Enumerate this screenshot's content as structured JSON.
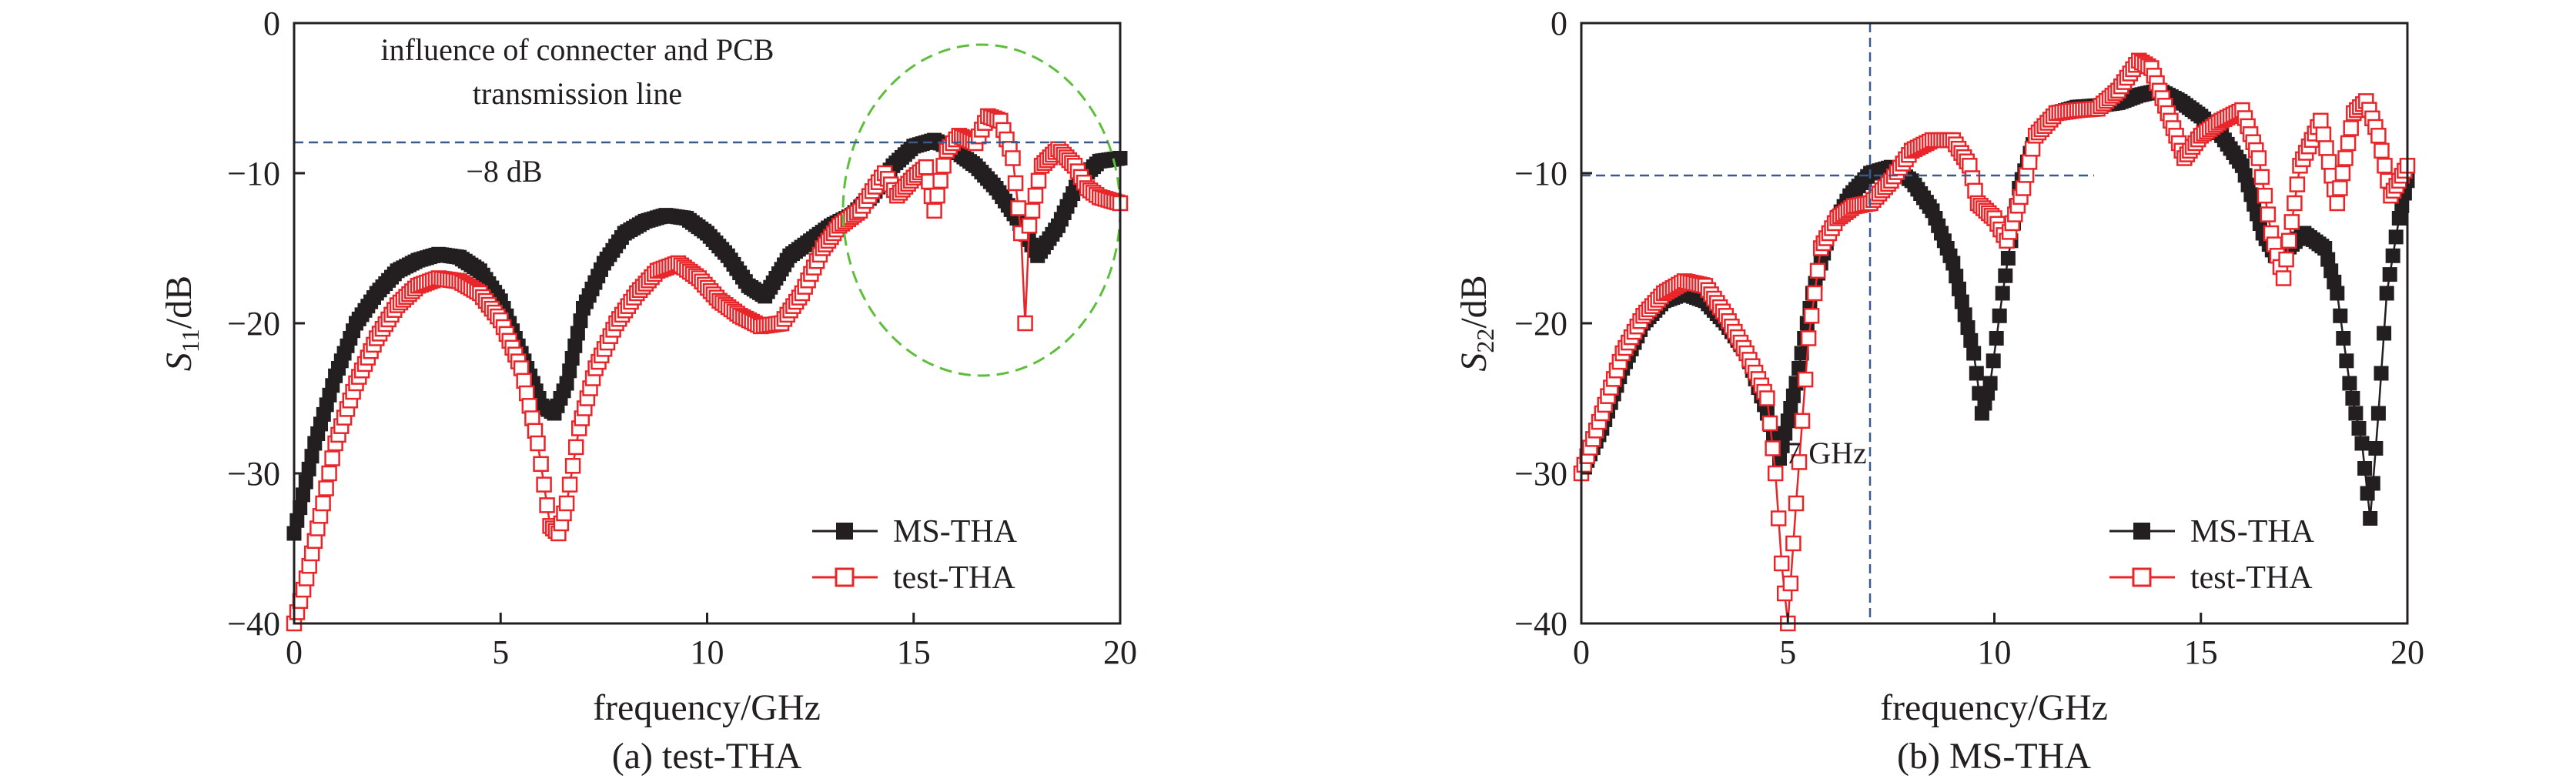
{
  "colors": {
    "ms": "#231f20",
    "test": "#e8262a",
    "ellipse": "#5cbf3a",
    "ref": "#3a5a8c",
    "axis": "#231f20"
  },
  "chart_data": [
    {
      "type": "line",
      "caption": "(a) test-THA",
      "xlabel": "frequency/GHz",
      "ylabel": {
        "main": "S",
        "sub": "11",
        "unit": "/dB"
      },
      "xlim": [
        0,
        20
      ],
      "ylim": [
        -40,
        0
      ],
      "xticks": [
        0,
        5,
        10,
        15,
        20
      ],
      "yticks": [
        0,
        -10,
        -20,
        -30,
        -40
      ],
      "xtick_labels": [
        "0",
        "5",
        "10",
        "15",
        "20"
      ],
      "ytick_labels": [
        "0",
        "−10",
        "−20",
        "−30",
        "−40"
      ],
      "legend": {
        "position": "bottom-right",
        "items": [
          "MS-THA",
          "test-THA"
        ]
      },
      "annotations": {
        "title_line1": "influence of connecter and PCB",
        "title_line2": "transmission line",
        "ref_label": "−8 dB",
        "ref_y": -8
      },
      "series": [
        {
          "name": "MS-THA",
          "marker": "filled-square",
          "color": "#231f20",
          "x": [
            0,
            0.5,
            1,
            1.5,
            2,
            2.5,
            3,
            3.5,
            4,
            4.5,
            5,
            5.5,
            6,
            6.3,
            6.6,
            7,
            7.5,
            8,
            8.5,
            9,
            9.5,
            10,
            10.5,
            11,
            11.4,
            12,
            12.5,
            13,
            13.5,
            14,
            14.5,
            15,
            15.5,
            16,
            16.5,
            17,
            17.5,
            18,
            18.5,
            19,
            19.5,
            20
          ],
          "y": [
            -34,
            -28,
            -23.5,
            -20,
            -18,
            -16.5,
            -15.8,
            -15.4,
            -15.6,
            -16.5,
            -18.5,
            -22,
            -25.5,
            -26,
            -24,
            -19,
            -16,
            -14,
            -13.2,
            -12.8,
            -13,
            -14,
            -15.5,
            -17.5,
            -18.2,
            -15.5,
            -14.5,
            -13.5,
            -12.8,
            -11.5,
            -9.5,
            -8.2,
            -7.8,
            -8.5,
            -9.5,
            -11,
            -13,
            -15.5,
            -13.5,
            -10.5,
            -9.2,
            -9
          ]
        },
        {
          "name": "test-THA",
          "marker": "open-square",
          "color": "#e8262a",
          "x": [
            0,
            0.3,
            0.7,
            1,
            1.5,
            2,
            2.5,
            3,
            3.5,
            4,
            4.5,
            5,
            5.5,
            5.9,
            6.2,
            6.4,
            6.6,
            6.9,
            7.3,
            7.8,
            8.3,
            8.8,
            9.3,
            9.8,
            10.3,
            10.8,
            11.3,
            11.8,
            12.3,
            12.8,
            13.2,
            13.7,
            14,
            14.3,
            14.6,
            15,
            15.3,
            15.5,
            15.8,
            16.1,
            16.5,
            16.8,
            17.1,
            17.4,
            17.6,
            17.7,
            17.8,
            18.1,
            18.5,
            18.9,
            19.2,
            19.5,
            20
          ],
          "y": [
            -40,
            -37,
            -32,
            -28,
            -24,
            -21,
            -18.8,
            -17.5,
            -17,
            -17.2,
            -18,
            -19.8,
            -23,
            -28,
            -33.5,
            -34,
            -32,
            -27,
            -23,
            -20,
            -18,
            -16.5,
            -16,
            -17,
            -18.5,
            -19.5,
            -20.2,
            -20,
            -18,
            -15,
            -13.5,
            -12.5,
            -11.2,
            -10,
            -11.5,
            -10.3,
            -9.6,
            -12.5,
            -8.5,
            -7.5,
            -8,
            -6.2,
            -6.5,
            -9,
            -14,
            -20,
            -13.5,
            -9.5,
            -8.4,
            -9.5,
            -11,
            -11.6,
            -12
          ]
        }
      ]
    },
    {
      "type": "line",
      "caption": "(b) MS-THA",
      "xlabel": "frequency/GHz",
      "ylabel": {
        "main": "S",
        "sub": "22",
        "unit": "/dB"
      },
      "xlim": [
        0,
        20
      ],
      "ylim": [
        -40,
        0
      ],
      "xticks": [
        0,
        5,
        10,
        15,
        20
      ],
      "yticks": [
        0,
        -10,
        -20,
        -30,
        -40
      ],
      "xtick_labels": [
        "0",
        "5",
        "10",
        "15",
        "20"
      ],
      "ytick_labels": [
        "0",
        "−10",
        "−20",
        "−30",
        "−40"
      ],
      "legend": {
        "position": "bottom-right",
        "items": [
          "MS-THA",
          "test-THA"
        ]
      },
      "annotations": {
        "vline_label": "7 GHz",
        "vline_x": 7,
        "ref_y": -10
      },
      "series": [
        {
          "name": "MS-THA",
          "marker": "filled-square",
          "color": "#231f20",
          "x": [
            0,
            0.5,
            1,
            1.5,
            2,
            2.5,
            3,
            3.5,
            4,
            4.5,
            4.8,
            5.2,
            5.6,
            6,
            6.5,
            7,
            7.5,
            8,
            8.5,
            9,
            9.5,
            9.7,
            9.9,
            10.2,
            10.6,
            11,
            11.5,
            12,
            12.5,
            13,
            13.5,
            14,
            14.5,
            15,
            15.5,
            16,
            16.5,
            16.8,
            17,
            17.5,
            18,
            18.3,
            18.6,
            18.9,
            19.1,
            19.3,
            19.5,
            19.8,
            20
          ],
          "y": [
            -30,
            -27,
            -23,
            -20,
            -18.5,
            -18,
            -18.5,
            -20,
            -22,
            -26,
            -29,
            -24,
            -18,
            -14,
            -11.5,
            -10,
            -9.6,
            -10.5,
            -12.5,
            -16,
            -22,
            -26,
            -24,
            -18,
            -11,
            -7.5,
            -6,
            -5.6,
            -5.5,
            -5.3,
            -4.8,
            -4.5,
            -5.2,
            -6.2,
            -7.5,
            -9.5,
            -14,
            -15.5,
            -15.3,
            -14,
            -15,
            -18,
            -24,
            -28,
            -33,
            -26,
            -18,
            -13,
            -10.5
          ]
        },
        {
          "name": "test-THA",
          "marker": "open-square",
          "color": "#e8262a",
          "x": [
            0,
            0.5,
            1,
            1.5,
            2,
            2.5,
            3,
            3.5,
            4,
            4.5,
            4.7,
            4.85,
            5,
            5.2,
            5.5,
            5.8,
            6.2,
            6.6,
            7,
            7.5,
            8,
            8.5,
            9,
            9.4,
            9.6,
            10,
            10.3,
            10.7,
            11,
            11.5,
            12,
            12.5,
            13,
            13.5,
            13.8,
            14.2,
            14.6,
            15,
            15.5,
            16,
            16.4,
            16.7,
            17,
            17.4,
            17.9,
            18.3,
            18.7,
            19,
            19.3,
            19.6,
            20
          ],
          "y": [
            -30,
            -26,
            -22,
            -19.5,
            -18,
            -17.2,
            -17.5,
            -19.5,
            -22,
            -25,
            -30,
            -36,
            -40,
            -32,
            -21,
            -15,
            -13,
            -12.2,
            -12,
            -10.5,
            -8.5,
            -7.8,
            -7.8,
            -9.5,
            -12,
            -13,
            -14.5,
            -11,
            -7.5,
            -6,
            -5.8,
            -5.7,
            -4.5,
            -2.5,
            -3,
            -6,
            -9,
            -7.5,
            -6.5,
            -5.8,
            -9,
            -14,
            -17,
            -9.5,
            -6.5,
            -12,
            -6,
            -5.2,
            -7.5,
            -11.5,
            -9.5
          ]
        }
      ]
    }
  ]
}
